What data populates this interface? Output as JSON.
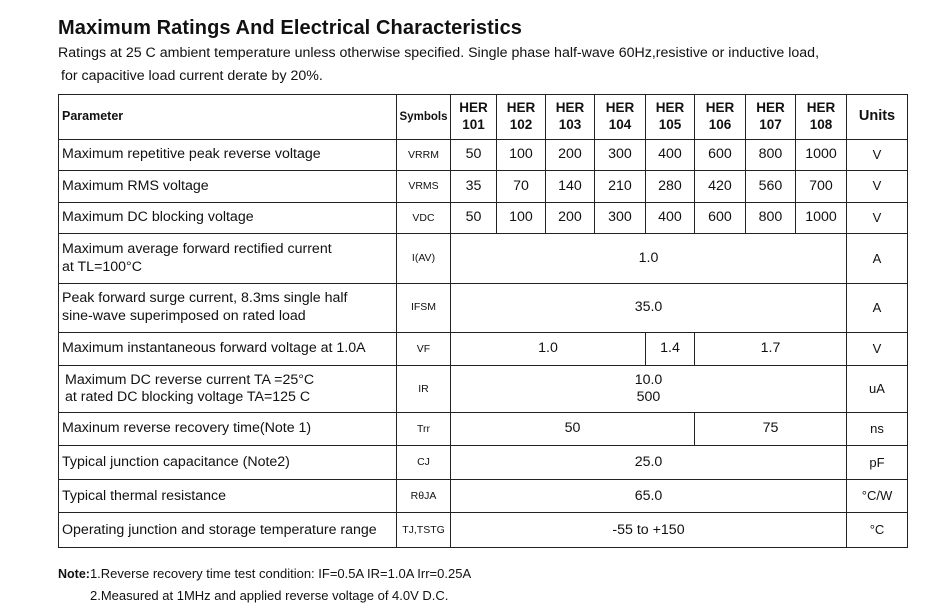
{
  "title": "Maximum Ratings And Electrical Characteristics",
  "subtitle_line1": "Ratings at 25 C ambient temperature unless otherwise specified. Single phase half-wave 60Hz,resistive or inductive load,",
  "subtitle_line2": "for capacitive load current derate by 20%.",
  "table": {
    "header": {
      "parameter": "Parameter",
      "symbols": "Symbols",
      "parts": [
        "HER 101",
        "HER 102",
        "HER 103",
        "HER 104",
        "HER 105",
        "HER 106",
        "HER 107",
        "HER 108"
      ],
      "units": "Units"
    },
    "rows": [
      {
        "parameter": "Maximum repetitive peak reverse voltage",
        "symbol": "VRRM",
        "values": [
          "50",
          "100",
          "200",
          "300",
          "400",
          "600",
          "800",
          "1000"
        ],
        "unit": "V"
      },
      {
        "parameter": "Maximum RMS voltage",
        "symbol": "VRMS",
        "values": [
          "35",
          "70",
          "140",
          "210",
          "280",
          "420",
          "560",
          "700"
        ],
        "unit": "V"
      },
      {
        "parameter": "Maximum DC blocking voltage",
        "symbol": "VDC",
        "values": [
          "50",
          "100",
          "200",
          "300",
          "400",
          "600",
          "800",
          "1000"
        ],
        "unit": "V"
      },
      {
        "parameter": "Maximum average forward rectified current at TL=100°C",
        "symbol": "I(AV)",
        "values": [
          "1.0"
        ],
        "unit": "A"
      },
      {
        "parameter": "Peak forward surge current, 8.3ms single half sine-wave superimposed on rated load",
        "symbol": "IFSM",
        "values": [
          "35.0"
        ],
        "unit": "A"
      },
      {
        "parameter": "Maximum instantaneous forward voltage at 1.0A",
        "symbol": "VF",
        "values": [
          "1.0",
          "1.4",
          "1.7"
        ],
        "unit": "V"
      },
      {
        "parameter": "Maximum DC reverse current TA =25°C at rated DC blocking voltage TA=125 C",
        "symbol": "IR",
        "values": [
          "10.0",
          "500"
        ],
        "unit": "uA"
      },
      {
        "parameter": "Maxinum reverse recovery time(Note 1)",
        "symbol": "Trr",
        "values": [
          "50",
          "75"
        ],
        "unit": "ns"
      },
      {
        "parameter": "Typical junction capacitance (Note2)",
        "symbol": "CJ",
        "values": [
          "25.0"
        ],
        "unit": "pF"
      },
      {
        "parameter": "Typical thermal resistance",
        "symbol": "RθJA",
        "values": [
          "65.0"
        ],
        "unit": "°C/W"
      },
      {
        "parameter": "Operating junction and storage temperature range",
        "symbol": "TJ,TSTG",
        "values": [
          "-55 to +150"
        ],
        "unit": "°C"
      }
    ]
  },
  "notes": {
    "label": "Note:",
    "note1": "1.Reverse recovery time test condition: IF=0.5A IR=1.0A Irr=0.25A",
    "note2": "2.Measured at 1MHz and applied reverse voltage of 4.0V D.C."
  }
}
